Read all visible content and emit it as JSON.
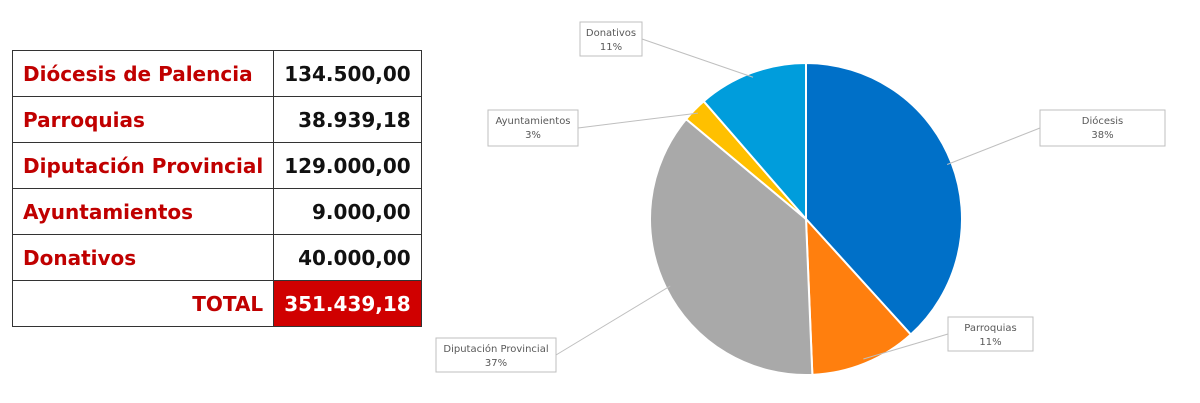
{
  "table": {
    "rows": [
      {
        "label": "Diócesis de Palencia",
        "value": "134.500,00"
      },
      {
        "label": "Parroquias",
        "value": "38.939,18"
      },
      {
        "label": "Diputación Provincial",
        "value": "129.000,00"
      },
      {
        "label": "Ayuntamientos",
        "value": "9.000,00"
      },
      {
        "label": "Donativos",
        "value": "40.000,00"
      }
    ],
    "total": {
      "label": "TOTAL",
      "value": "351.439,18"
    }
  },
  "chart_data": {
    "type": "pie",
    "title": "",
    "slices": [
      {
        "label": "Diócesis",
        "value": 134500.0,
        "percent": "38%",
        "color": "#0070c8"
      },
      {
        "label": "Parroquias",
        "value": 38939.18,
        "percent": "11%",
        "color": "#ff7f0e"
      },
      {
        "label": "Diputación Provincial",
        "value": 129000.0,
        "percent": "37%",
        "color": "#a9a9a9"
      },
      {
        "label": "Ayuntamientos",
        "value": 9000.0,
        "percent": "3%",
        "color": "#ffc000"
      },
      {
        "label": "Donativos",
        "value": 40000.0,
        "percent": "11%",
        "color": "#009ddc"
      }
    ],
    "start": "12 o'clock",
    "direction": "clockwise",
    "legend": "none"
  }
}
